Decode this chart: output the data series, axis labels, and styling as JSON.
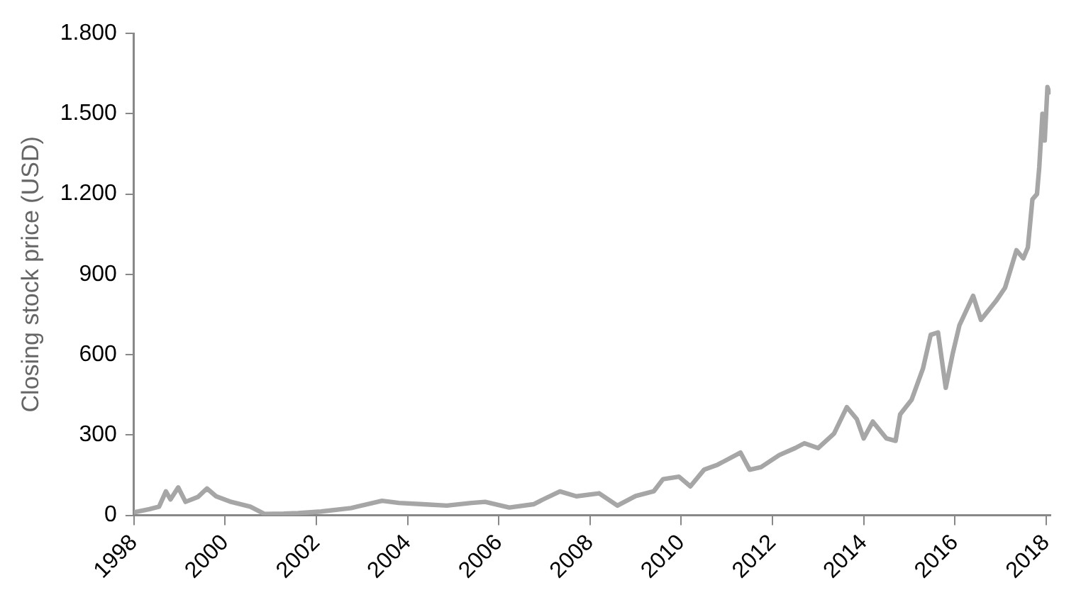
{
  "chart_data": {
    "type": "line",
    "ylabel": "Closing stock price (USD)",
    "xlim": [
      1998,
      2018.1
    ],
    "xticks": [
      1998,
      2000,
      2002,
      2004,
      2006,
      2008,
      2010,
      2012,
      2014,
      2016,
      2018
    ],
    "ylim": [
      0,
      1800
    ],
    "yticks": [
      0,
      300,
      600,
      900,
      {
        "value": 1200,
        "label": "1.200"
      },
      {
        "value": 1500,
        "label": "1.500"
      },
      {
        "value": 1800,
        "label": "1.800"
      }
    ],
    "grid": false,
    "legend": false,
    "marker": "none",
    "line_style": "solid",
    "series": [
      {
        "color": "#a6a6a6",
        "x": [
          1998.0,
          1998.34,
          1998.55,
          1998.7,
          1998.8,
          1998.97,
          1999.13,
          1999.4,
          1999.6,
          1999.8,
          2000.13,
          2000.55,
          2000.86,
          2001.28,
          2001.6,
          2002.1,
          2002.76,
          2003.44,
          2003.81,
          2004.34,
          2004.86,
          2005.4,
          2005.7,
          2006.23,
          2006.76,
          2006.97,
          2007.34,
          2007.7,
          2008.2,
          2008.6,
          2009.0,
          2009.4,
          2009.6,
          2009.95,
          2010.2,
          2010.5,
          2010.8,
          2011.3,
          2011.5,
          2011.75,
          2012.15,
          2012.5,
          2012.7,
          2013.0,
          2013.35,
          2013.63,
          2013.85,
          2014.0,
          2014.2,
          2014.5,
          2014.7,
          2014.8,
          2015.05,
          2015.3,
          2015.47,
          2015.63,
          2015.8,
          2015.95,
          2016.1,
          2016.4,
          2016.57,
          2016.9,
          2017.1,
          2017.35,
          2017.5,
          2017.6,
          2017.7,
          2017.8,
          2017.85,
          2017.92,
          2017.97,
          2018.03,
          2018.07
        ],
        "values": [
          11,
          23,
          32,
          89,
          59,
          104,
          50,
          68,
          100,
          71,
          50,
          32,
          5,
          6,
          8,
          14,
          27,
          54,
          46,
          41,
          36,
          46,
          50,
          29,
          41,
          59,
          89,
          71,
          82,
          36,
          72,
          90,
          135,
          144,
          108,
          170,
          189,
          234,
          170,
          180,
          225,
          251,
          269,
          251,
          305,
          404,
          359,
          287,
          350,
          287,
          278,
          377,
          431,
          548,
          674,
          683,
          476,
          602,
          710,
          820,
          730,
          800,
          850,
          990,
          960,
          1000,
          1180,
          1200,
          1300,
          1500,
          1400,
          1600,
          1580
        ]
      }
    ]
  }
}
